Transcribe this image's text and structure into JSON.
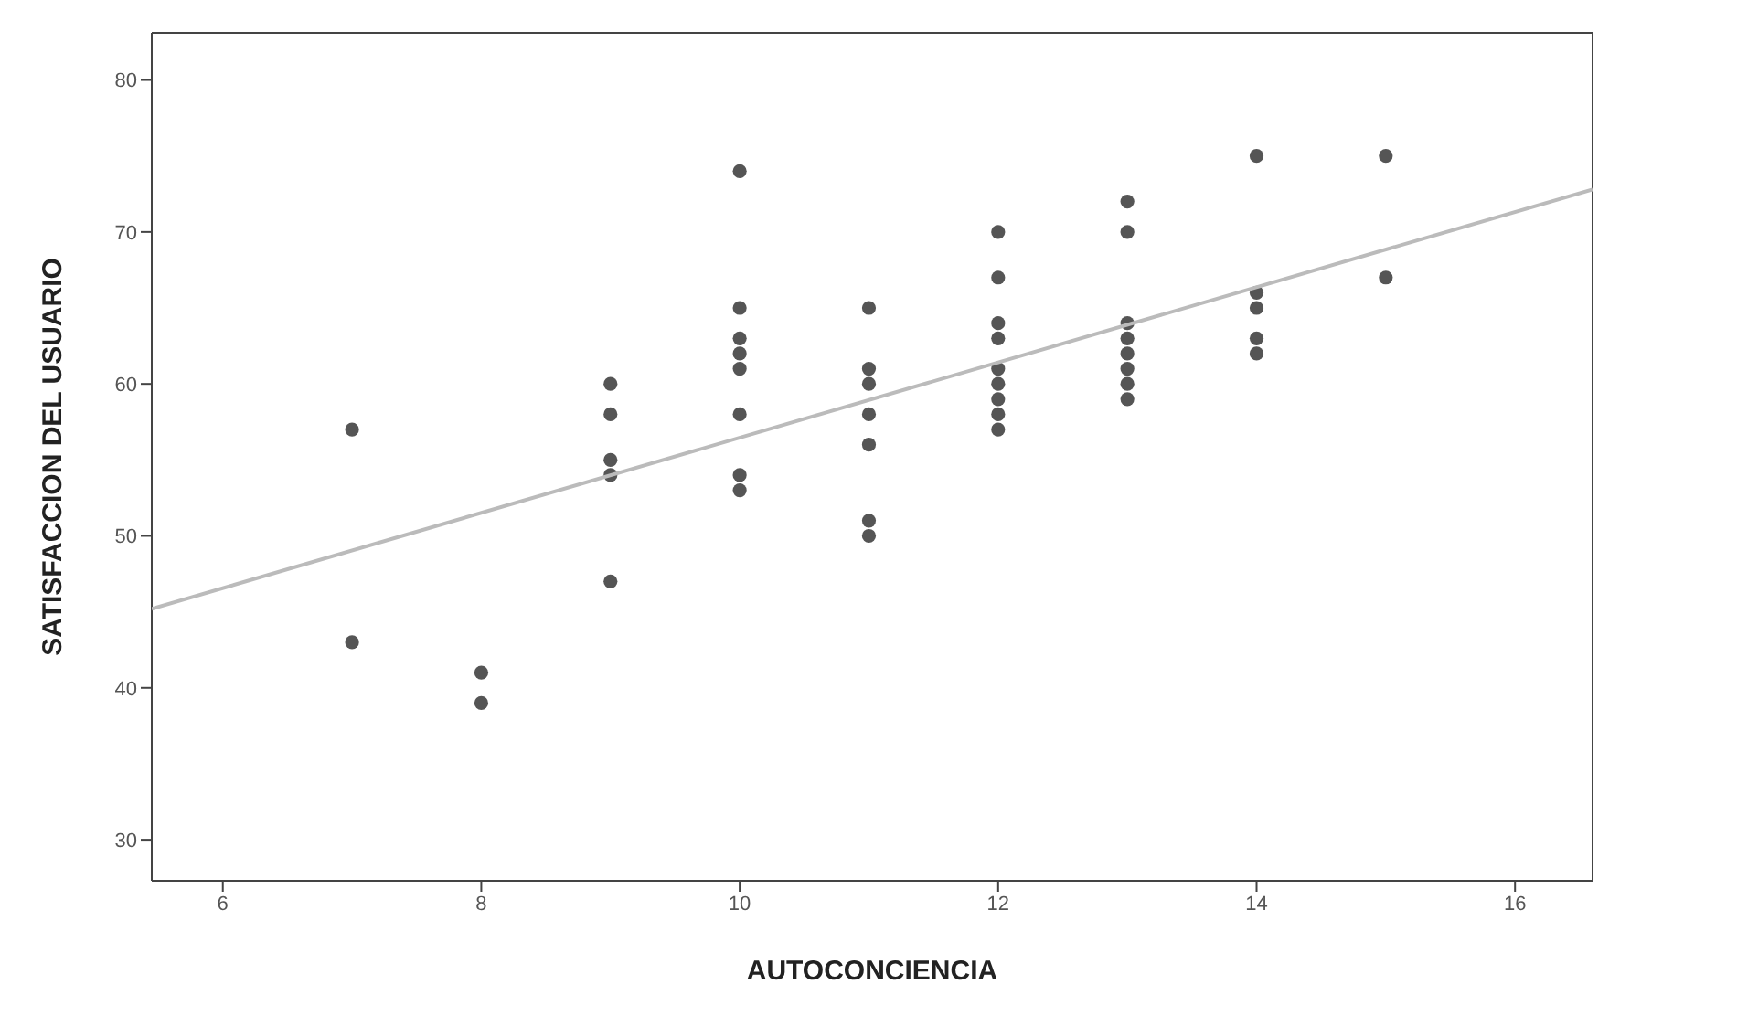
{
  "chart_data": {
    "type": "scatter",
    "xlabel": "AUTOCONCIENCIA",
    "ylabel": "SATISFACCION DEL USUARIO",
    "xlim": [
      5.45,
      16.6
    ],
    "ylim": [
      27.3,
      83.1
    ],
    "xticks": [
      6,
      8,
      10,
      12,
      14,
      16
    ],
    "yticks": [
      30,
      40,
      50,
      60,
      70,
      80
    ],
    "marker": "circle",
    "series": [
      {
        "type": "scatter",
        "color": "#555555",
        "x": [
          7,
          7,
          8,
          8,
          9,
          9,
          9,
          9,
          9,
          10,
          10,
          10,
          10,
          10,
          10,
          10,
          10,
          11,
          11,
          11,
          11,
          11,
          11,
          11,
          12,
          12,
          12,
          12,
          12,
          12,
          12,
          12,
          12,
          13,
          13,
          13,
          13,
          13,
          13,
          13,
          13,
          14,
          14,
          14,
          14,
          14,
          15,
          15
        ],
        "values": [
          57,
          43,
          41,
          39,
          60,
          58,
          55,
          54,
          47,
          74,
          65,
          63,
          62,
          61,
          58,
          54,
          53,
          65,
          61,
          60,
          58,
          56,
          51,
          50,
          70,
          67,
          64,
          63,
          61,
          60,
          59,
          58,
          57,
          72,
          70,
          64,
          63,
          62,
          61,
          60,
          59,
          75,
          66,
          65,
          63,
          62,
          75,
          67
        ]
      },
      {
        "type": "line",
        "color": "#bbbbbb",
        "marker": "none",
        "x": [
          5.45,
          16.6
        ],
        "values": [
          45.2,
          72.8
        ]
      }
    ]
  }
}
